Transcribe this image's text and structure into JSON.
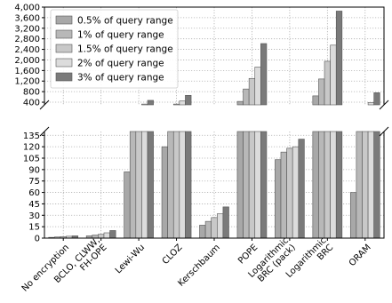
{
  "chart_data": {
    "type": "bar",
    "broken_axis": true,
    "categories": [
      "No encryption",
      "BCLO, CLWW,\nFH-OPE",
      "Lewi-Wu",
      "CLOZ",
      "Kerschbaum",
      "POPE",
      "Logarithmic\nBRC (pack)",
      "Logarithmic\nBRC",
      "ORAM"
    ],
    "series": [
      {
        "name": "0.5% of query range",
        "color": "#a8a8a8",
        "values": [
          1,
          3,
          87,
          120,
          17,
          430,
          103,
          640,
          60
        ]
      },
      {
        "name": "1% of query range",
        "color": "#b8b8b8",
        "values": [
          1.5,
          4,
          150,
          220,
          22,
          900,
          113,
          1280,
          160
        ]
      },
      {
        "name": "1.5% of query range",
        "color": "#c8c8c8",
        "values": [
          2,
          5,
          250,
          330,
          27,
          1300,
          118,
          1950,
          250
        ]
      },
      {
        "name": "2% of query range",
        "color": "#dcdcdc",
        "values": [
          2.5,
          7,
          330,
          450,
          32,
          1730,
          120,
          2560,
          390
        ]
      },
      {
        "name": "3% of query range",
        "color": "#7a7a7a",
        "values": [
          3,
          10,
          470,
          660,
          41,
          2620,
          130,
          3850,
          760
        ]
      }
    ],
    "lower_ylim": [
      0,
      140
    ],
    "upper_ylim": [
      300,
      4000
    ],
    "lower_ticks": [
      "0",
      "15",
      "30",
      "45",
      "60",
      "75",
      "90",
      "105",
      "120",
      "135"
    ],
    "upper_ticks": [
      "400",
      "800",
      "1,200",
      "1,600",
      "2,000",
      "2,400",
      "2,800",
      "3,200",
      "3,600",
      "4,000"
    ],
    "grid": true,
    "legend_position": "top-left"
  }
}
